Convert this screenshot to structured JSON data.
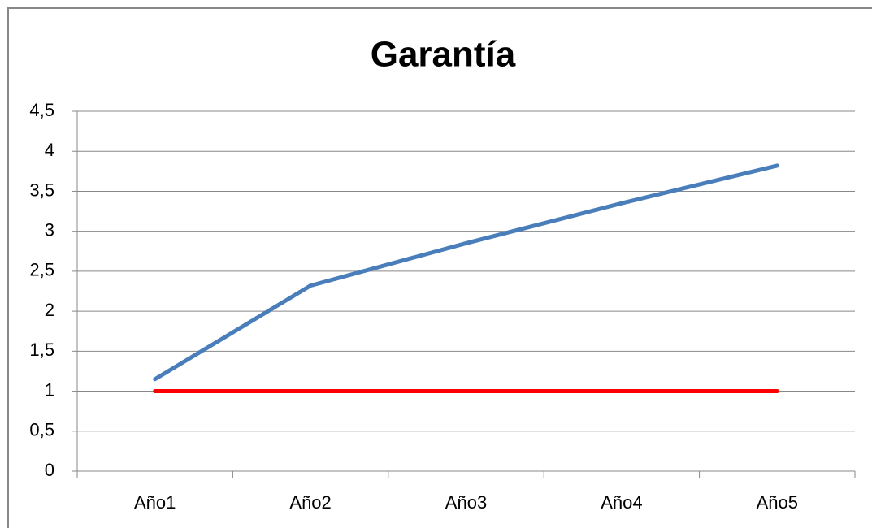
{
  "chart_data": {
    "type": "line",
    "title": "Garantía",
    "categories": [
      "Año1",
      "Año2",
      "Año3",
      "Año4",
      "Año5"
    ],
    "series": [
      {
        "color": "#4a7ebb",
        "values": [
          1.15,
          2.32,
          2.85,
          3.35,
          3.82
        ]
      },
      {
        "color": "#ff0000",
        "values": [
          1,
          1,
          1,
          1,
          1
        ]
      }
    ],
    "ylim": [
      0,
      4.5
    ],
    "yticks": [
      0,
      {
        "value": 0.5,
        "label": "0,5"
      },
      1,
      {
        "value": 1.5,
        "label": "1,5"
      },
      2,
      {
        "value": 2.5,
        "label": "2,5"
      },
      3,
      {
        "value": 3.5,
        "label": "3,5"
      },
      4,
      {
        "value": 4.5,
        "label": "4,5"
      }
    ],
    "grid": true
  }
}
